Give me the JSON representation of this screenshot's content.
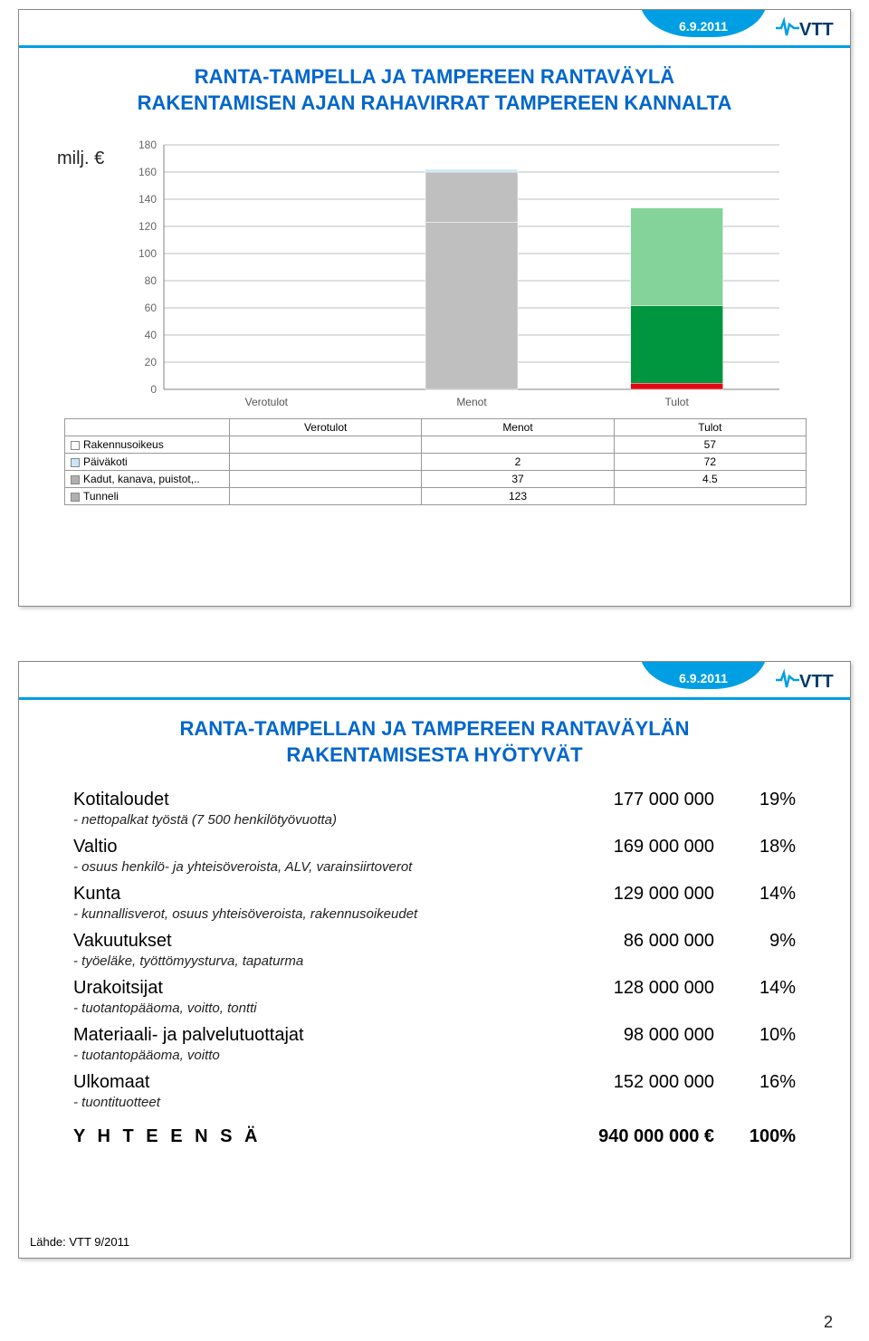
{
  "header": {
    "date": "6.9.2011",
    "accent_color": "#009fe3",
    "logo_text": "VTT",
    "logo_text_color": "#003a6a",
    "logo_pulse_color": "#009fe3"
  },
  "slide1": {
    "title_line1": "RANTA-TAMPELLA JA TAMPEREEN RANTAVÄYLÄ",
    "title_line2": "RAKENTAMISEN AJAN RAHAVIRRAT TAMPEREEN KANNALTA",
    "ylabel": "milj. €",
    "chart": {
      "type": "stacked-bar",
      "ylim": [
        0,
        180
      ],
      "ytick_step": 20,
      "categories": [
        "Verotulot",
        "Menot",
        "Tulot"
      ],
      "series": [
        {
          "name": "Rakennusoikeus",
          "swatch": "#ffffff",
          "values": [
            null,
            null,
            57
          ]
        },
        {
          "name": "Päiväkoti",
          "swatch": "#c9e6f7",
          "values": [
            null,
            2,
            72
          ]
        },
        {
          "name": "Kadut, kanava, puistot,..",
          "swatch": "#b0b0b0",
          "values": [
            null,
            37,
            4.5
          ]
        },
        {
          "name": "Tunneli",
          "swatch": "#b0b0b0",
          "values": [
            null,
            123,
            null
          ]
        }
      ],
      "bar_colors": {
        "menot_tunneli": "#bfbfbf",
        "menot_kadut": "#bfbfbf",
        "menot_paiva": "#c9e6f7",
        "tulot_bottom": "#e30613",
        "tulot_mid1": "#009640",
        "tulot_mid2": "#84d39a",
        "tulot_top": "#d6ead6"
      },
      "background_color": "#ffffff",
      "grid_color": "#bfbfbf",
      "axis_color": "#808080",
      "label_fontsize": 12,
      "bar_width": 0.45
    }
  },
  "slide2": {
    "title_line1": "RANTA-TAMPELLAN JA TAMPEREEN RANTAVÄYLÄN",
    "title_line2": "RAKENTAMISESTA HYÖTYVÄT",
    "rows": [
      {
        "label": "Kotitaloudet",
        "value": "177 000 000",
        "pct": "19%",
        "note": "- nettopalkat työstä (7 500 henkilötyövuotta)"
      },
      {
        "label": "Valtio",
        "value": "169 000 000",
        "pct": "18%",
        "note": "- osuus henkilö- ja yhteisöveroista, ALV, varainsiirtoverot"
      },
      {
        "label": "Kunta",
        "value": "129 000 000",
        "pct": "14%",
        "note": "- kunnallisverot, osuus yhteisöveroista, rakennusoikeudet"
      },
      {
        "label": "Vakuutukset",
        "value": "86 000 000",
        "pct": "9%",
        "note": "- työeläke, työttömyysturva, tapaturma"
      },
      {
        "label": "Urakoitsijat",
        "value": "128 000 000",
        "pct": "14%",
        "note": "- tuotantopääoma, voitto, tontti"
      },
      {
        "label": "Materiaali- ja palvelutuottajat",
        "value": "98 000 000",
        "pct": "10%",
        "note": "- tuotantopääoma, voitto"
      },
      {
        "label": "Ulkomaat",
        "value": "152 000 000",
        "pct": "16%",
        "note": "- tuontituotteet"
      }
    ],
    "total": {
      "label": "Y H T E E N S Ä",
      "value": "940 000 000 €",
      "pct": "100%"
    },
    "source": "Lähde: VTT 9/2011"
  },
  "page_number": "2"
}
